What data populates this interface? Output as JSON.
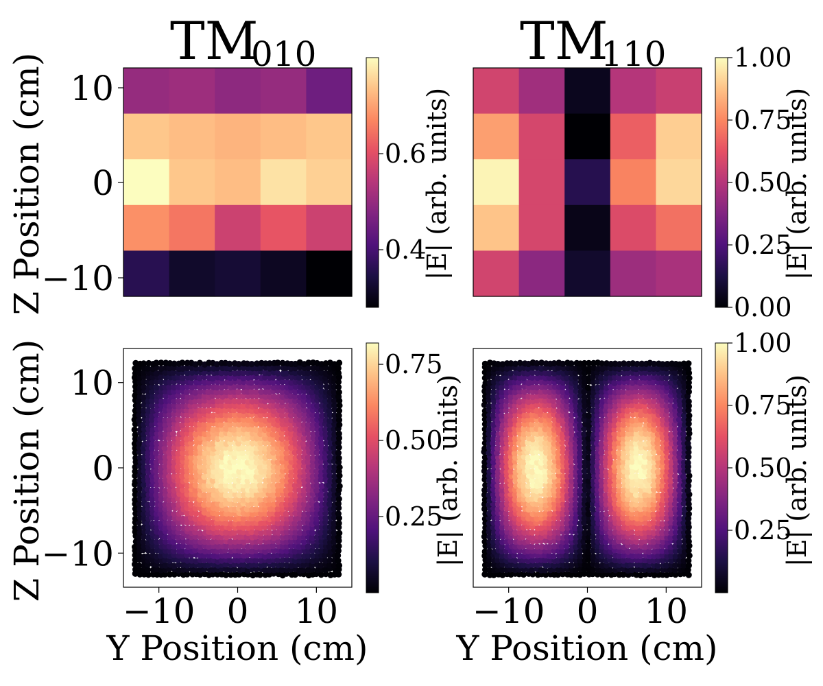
{
  "chart_data": [
    {
      "id": "tm010_measured",
      "type": "heatmap",
      "title_main": "TM",
      "title_sub": "010",
      "ylabel": "Z Position (cm)",
      "xlabel": "",
      "xlim": [
        -12,
        14
      ],
      "ylim": [
        -12,
        12
      ],
      "yticks": [
        10,
        0,
        -10
      ],
      "ytick_labels": [
        "10",
        "0",
        "−10"
      ],
      "xticks": [],
      "rows": 5,
      "cols": 5,
      "values": [
        [
          0.5,
          0.51,
          0.49,
          0.5,
          0.45
        ],
        [
          0.74,
          0.73,
          0.72,
          0.73,
          0.74
        ],
        [
          0.8,
          0.74,
          0.73,
          0.77,
          0.75
        ],
        [
          0.68,
          0.65,
          0.57,
          0.61,
          0.57
        ],
        [
          0.36,
          0.32,
          0.33,
          0.31,
          0.28
        ]
      ],
      "colorbar": {
        "label": "|E| (arb. units)",
        "vmin": 0.28,
        "vmax": 0.8,
        "ticks": [
          0.4,
          0.6
        ],
        "tick_labels": [
          "0.4",
          "0.6"
        ]
      }
    },
    {
      "id": "tm110_measured",
      "type": "heatmap",
      "title_main": "TM",
      "title_sub": "110",
      "ylabel": "",
      "xlabel": "",
      "xlim": [
        -12,
        14
      ],
      "ylim": [
        -12,
        12
      ],
      "yticks": [],
      "xticks": [],
      "rows": 5,
      "cols": 5,
      "values": [
        [
          0.57,
          0.45,
          0.05,
          0.5,
          0.55
        ],
        [
          0.8,
          0.58,
          0.0,
          0.66,
          0.9
        ],
        [
          0.98,
          0.58,
          0.15,
          0.74,
          0.92
        ],
        [
          0.88,
          0.58,
          0.04,
          0.6,
          0.7
        ],
        [
          0.57,
          0.4,
          0.08,
          0.44,
          0.47
        ]
      ],
      "colorbar": {
        "label": "|E| (arb. units)",
        "vmin": 0.0,
        "vmax": 1.0,
        "ticks": [
          1.0,
          0.75,
          0.5,
          0.25,
          0.0
        ],
        "tick_labels": [
          "1.00",
          "0.75",
          "0.50",
          "0.25",
          "0.00"
        ]
      }
    },
    {
      "id": "tm010_simulated",
      "type": "scatter",
      "mode": "TM010",
      "ylabel": "Z Position (cm)",
      "xlabel": "Y Position (cm)",
      "xlim": [
        -14.5,
        14.5
      ],
      "ylim": [
        -14,
        14
      ],
      "xticks": [
        -10,
        0,
        10
      ],
      "xtick_labels": [
        "−10",
        "0",
        "10"
      ],
      "yticks": [
        10,
        0,
        -10
      ],
      "ytick_labels": [
        "10",
        "0",
        "−10"
      ],
      "cavity_y_range": [
        -13,
        13
      ],
      "cavity_z_range": [
        -12.5,
        12.5
      ],
      "peak_value": 0.82,
      "colorbar": {
        "label": "|E| (arb. units)",
        "vmin": 0.0,
        "vmax": 0.82,
        "ticks": [
          0.75,
          0.5,
          0.25
        ],
        "tick_labels": [
          "0.75",
          "0.50",
          "0.25"
        ]
      }
    },
    {
      "id": "tm110_simulated",
      "type": "scatter",
      "mode": "TM110",
      "ylabel": "",
      "xlabel": "Y Position (cm)",
      "xlim": [
        -14.5,
        14.5
      ],
      "ylim": [
        -14,
        14
      ],
      "xticks": [
        -10,
        0,
        10
      ],
      "xtick_labels": [
        "−10",
        "0",
        "10"
      ],
      "yticks": [],
      "cavity_y_range": [
        -13,
        13
      ],
      "cavity_z_range": [
        -12.5,
        12.5
      ],
      "peak_value": 1.0,
      "colorbar": {
        "label": "|E| (arb. units)",
        "vmin": 0.0,
        "vmax": 1.0,
        "ticks": [
          1.0,
          0.75,
          0.5,
          0.25
        ],
        "tick_labels": [
          "1.00",
          "0.75",
          "0.50",
          "0.25"
        ]
      }
    }
  ],
  "colormap": {
    "name": "magma",
    "stops": [
      "#000004",
      "#1c1044",
      "#4f127b",
      "#812581",
      "#b5367a",
      "#e55064",
      "#fb8761",
      "#fec287",
      "#fcfdbf"
    ]
  }
}
